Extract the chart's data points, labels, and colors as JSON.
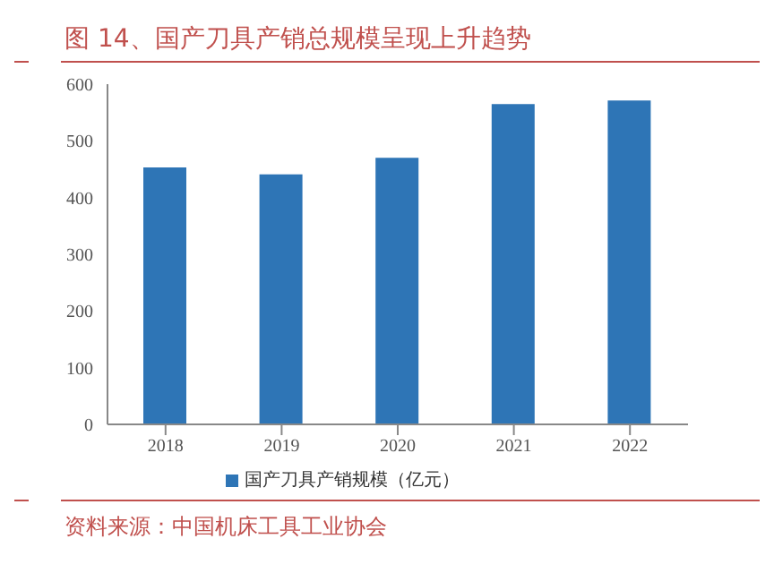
{
  "chart_data": {
    "type": "bar",
    "title": "图 14、国产刀具产销总规模呈现上升趋势",
    "categories": [
      "2018",
      "2019",
      "2020",
      "2021",
      "2022"
    ],
    "series": [
      {
        "name": "国产刀具产销规模（亿元）",
        "color": "#2e75b6",
        "values": [
          453,
          441,
          470,
          565,
          571
        ]
      }
    ],
    "ylim": [
      0,
      600
    ],
    "yticks": [
      0,
      100,
      200,
      300,
      400,
      500,
      600
    ],
    "grid": false,
    "legend": "bottom",
    "annotations": [
      "资料来源：中国机床工具工业协会"
    ]
  }
}
